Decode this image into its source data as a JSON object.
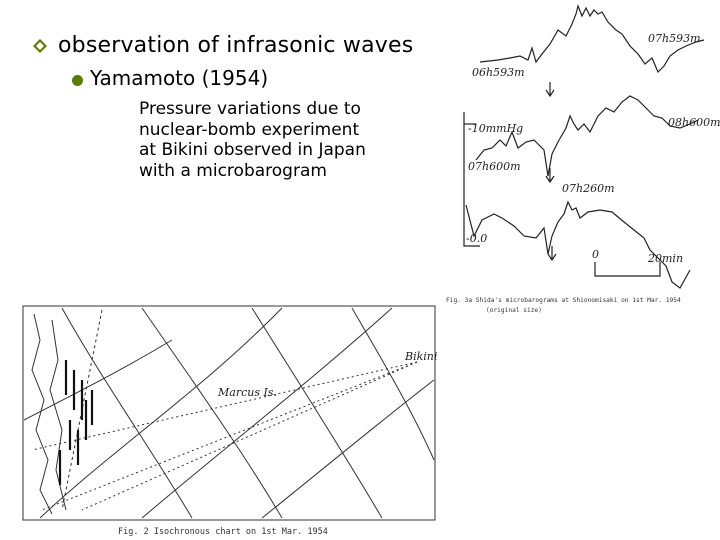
{
  "colors": {
    "bullet": "#5a7d00",
    "text": "#000000",
    "figure_ink": "#222222"
  },
  "slide": {
    "heading": "observation of infrasonic waves",
    "subheading": "Yamamoto (1954)",
    "description_lines": [
      "Pressure variations due to",
      "nuclear-bomb experiment",
      "at Bikini observed in Japan",
      "with a microbarogram"
    ]
  },
  "microbarogram_figure": {
    "trace_labels": [
      "06h593m",
      "07h593m",
      "07h600m",
      "08h600m",
      "07h260m"
    ],
    "scale_labels": [
      "-10mmHg",
      "-0.0",
      "0",
      "20min"
    ],
    "caption": "Fig. 3a  Shida's microbarograms at Shionomisaki on 1st Mar. 1954",
    "caption_sub": "(original size)"
  },
  "isochronous_chart": {
    "place_labels": [
      "Bikini",
      "Marcus Is."
    ],
    "caption": "Fig. 2  Isochronous chart on 1st Mar. 1954"
  }
}
